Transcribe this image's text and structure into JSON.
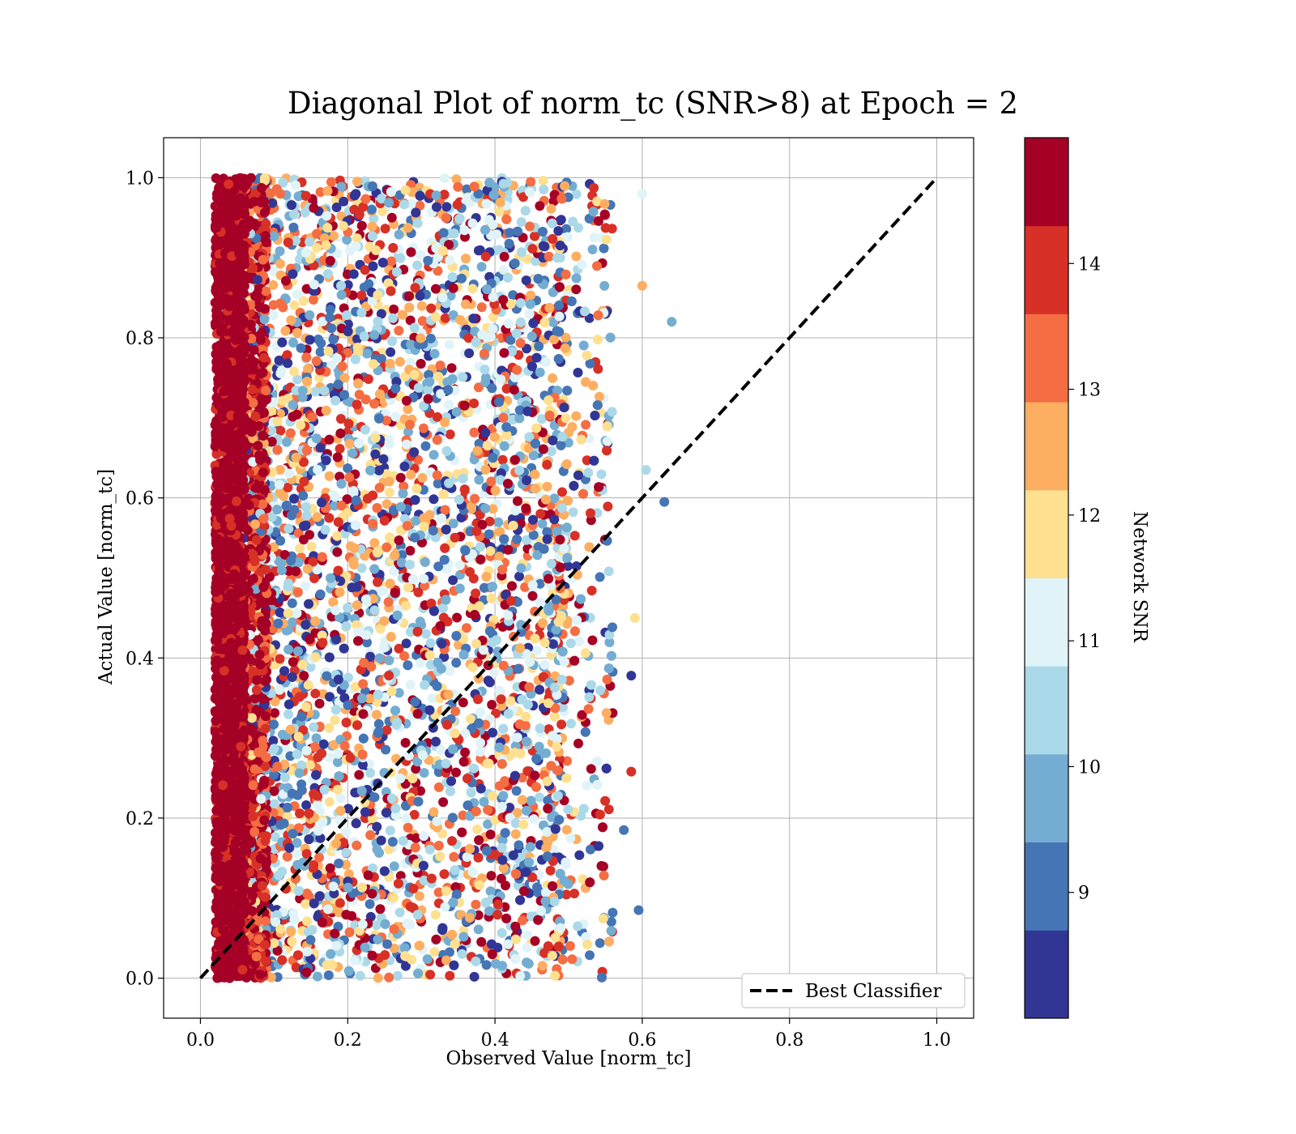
{
  "chart_data": {
    "type": "scatter",
    "title": "Diagonal Plot of norm_tc (SNR>8) at Epoch = 2",
    "xlabel": "Observed Value [norm_tc]",
    "ylabel": "Actual Value [norm_tc]",
    "xlim": [
      -0.05,
      1.05
    ],
    "ylim": [
      -0.05,
      1.05
    ],
    "x_ticks": [
      "0.0",
      "0.2",
      "0.4",
      "0.6",
      "0.8",
      "1.0"
    ],
    "y_ticks": [
      "0.0",
      "0.2",
      "0.4",
      "0.6",
      "0.8",
      "1.0"
    ],
    "grid": true,
    "legend": {
      "position": "lower-right",
      "entries": [
        {
          "label": "Best Classifier",
          "style": "dashed",
          "color": "#000000"
        }
      ]
    },
    "reference_line": {
      "x": [
        0.0,
        1.0
      ],
      "y": [
        0.0,
        1.0
      ],
      "style": "dashed",
      "color": "#000000"
    },
    "colorbar": {
      "label": "Network SNR",
      "range": [
        8.0,
        15.0
      ],
      "ticks": [
        "9",
        "10",
        "11",
        "12",
        "13",
        "14"
      ],
      "colors": [
        "#313695",
        "#4575b4",
        "#74add1",
        "#abd9e9",
        "#e0f3f8",
        "#fee090",
        "#fdae61",
        "#f46d43",
        "#d73027",
        "#a50026"
      ]
    },
    "scatter_summary": {
      "x_range_main": [
        0.02,
        0.56
      ],
      "y_range": [
        0.0,
        1.0
      ],
      "dense_column_x": [
        0.02,
        0.06
      ],
      "dense_column_color": "#a50026",
      "outliers": [
        {
          "x": 0.64,
          "y": 0.82,
          "color": "#74add1"
        },
        {
          "x": 0.63,
          "y": 0.595,
          "color": "#4575b4"
        },
        {
          "x": 0.6,
          "y": 0.98,
          "color": "#e0f3f8"
        },
        {
          "x": 0.6,
          "y": 0.865,
          "color": "#fdae61"
        },
        {
          "x": 0.605,
          "y": 0.635,
          "color": "#abd9e9"
        },
        {
          "x": 0.59,
          "y": 0.45,
          "color": "#fee090"
        },
        {
          "x": 0.595,
          "y": 0.085,
          "color": "#4575b4"
        },
        {
          "x": 0.585,
          "y": 0.378,
          "color": "#313695"
        },
        {
          "x": 0.585,
          "y": 0.258,
          "color": "#d73027"
        },
        {
          "x": 0.575,
          "y": 0.185,
          "color": "#4575b4"
        }
      ]
    }
  }
}
